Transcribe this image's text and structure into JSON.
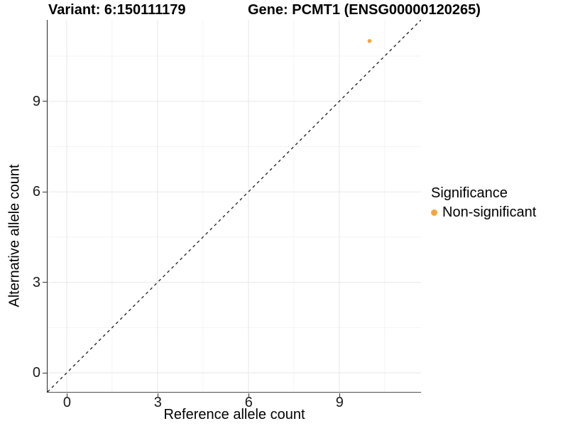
{
  "header": {
    "variant_title": "Variant: 6:150111179",
    "gene_title": "Gene: PCMT1 (ENSG00000120265)"
  },
  "chart_data": {
    "type": "scatter",
    "xlabel": "Reference allele count",
    "ylabel": "Alternative allele count",
    "xlim": [
      -0.63,
      11.7
    ],
    "ylim": [
      -0.63,
      11.7
    ],
    "x_ticks": [
      0,
      3,
      6,
      9
    ],
    "y_ticks": [
      0,
      3,
      6,
      9
    ],
    "x_minor_ticks": [
      1.5,
      4.5,
      7.5,
      10.5
    ],
    "y_minor_ticks": [
      1.5,
      4.5,
      7.5,
      10.5
    ],
    "grid": true,
    "identity_line": {
      "style": "dashed",
      "from": [
        -0.63,
        -0.63
      ],
      "to": [
        11.7,
        11.7
      ],
      "color": "#1a1a1a"
    },
    "points": [
      {
        "x": 10,
        "y": 11,
        "series": "Non-significant",
        "color": "#FAA43A",
        "radius": 2.8
      }
    ],
    "legend": {
      "title": "Significance",
      "position": "right",
      "entries": [
        {
          "label": "Non-significant",
          "color": "#FAA43A"
        }
      ]
    },
    "colors": {
      "background": "#FFFFFF",
      "grid_major": "#E9E9E9",
      "grid_minor": "#F3F3F3",
      "axis_line": "#333333",
      "point": "#FAA43A"
    }
  }
}
